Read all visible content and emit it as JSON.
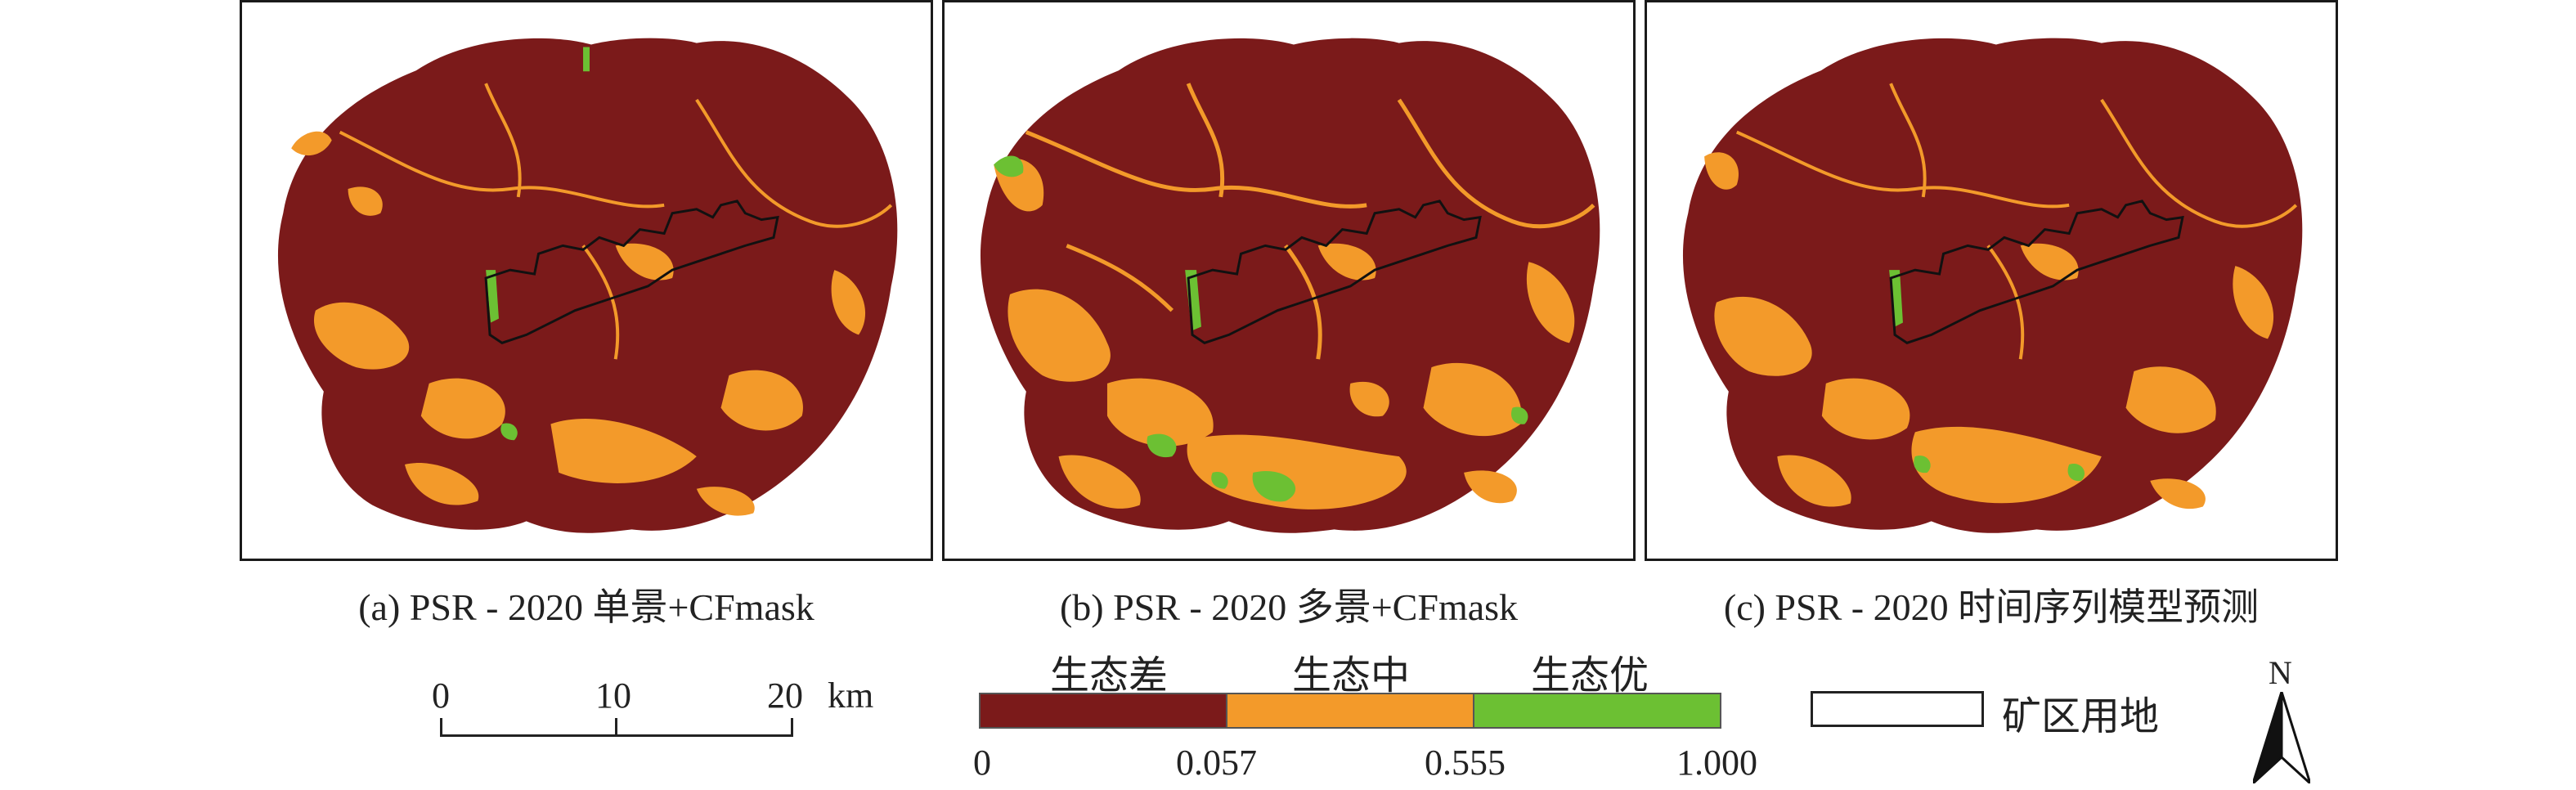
{
  "panels": [
    {
      "caption": "(a) PSR - 2020 单景+CFmask"
    },
    {
      "caption": "(b) PSR - 2020 多景+CFmask"
    },
    {
      "caption": "(c) PSR - 2020 时间序列模型预测"
    }
  ],
  "legend": {
    "classes": [
      {
        "label": "生态差",
        "color": "#7b1a1a"
      },
      {
        "label": "生态中",
        "color": "#f39a2a"
      },
      {
        "label": "生态优",
        "color": "#6cc033"
      }
    ],
    "ticks": [
      "0",
      "0.057",
      "0.555",
      "1.000"
    ]
  },
  "scale_bar": {
    "labels": [
      "0",
      "10",
      "20"
    ],
    "unit": "km"
  },
  "mine_area": {
    "label": "矿区用地"
  },
  "north_arrow": {
    "label": "N"
  }
}
